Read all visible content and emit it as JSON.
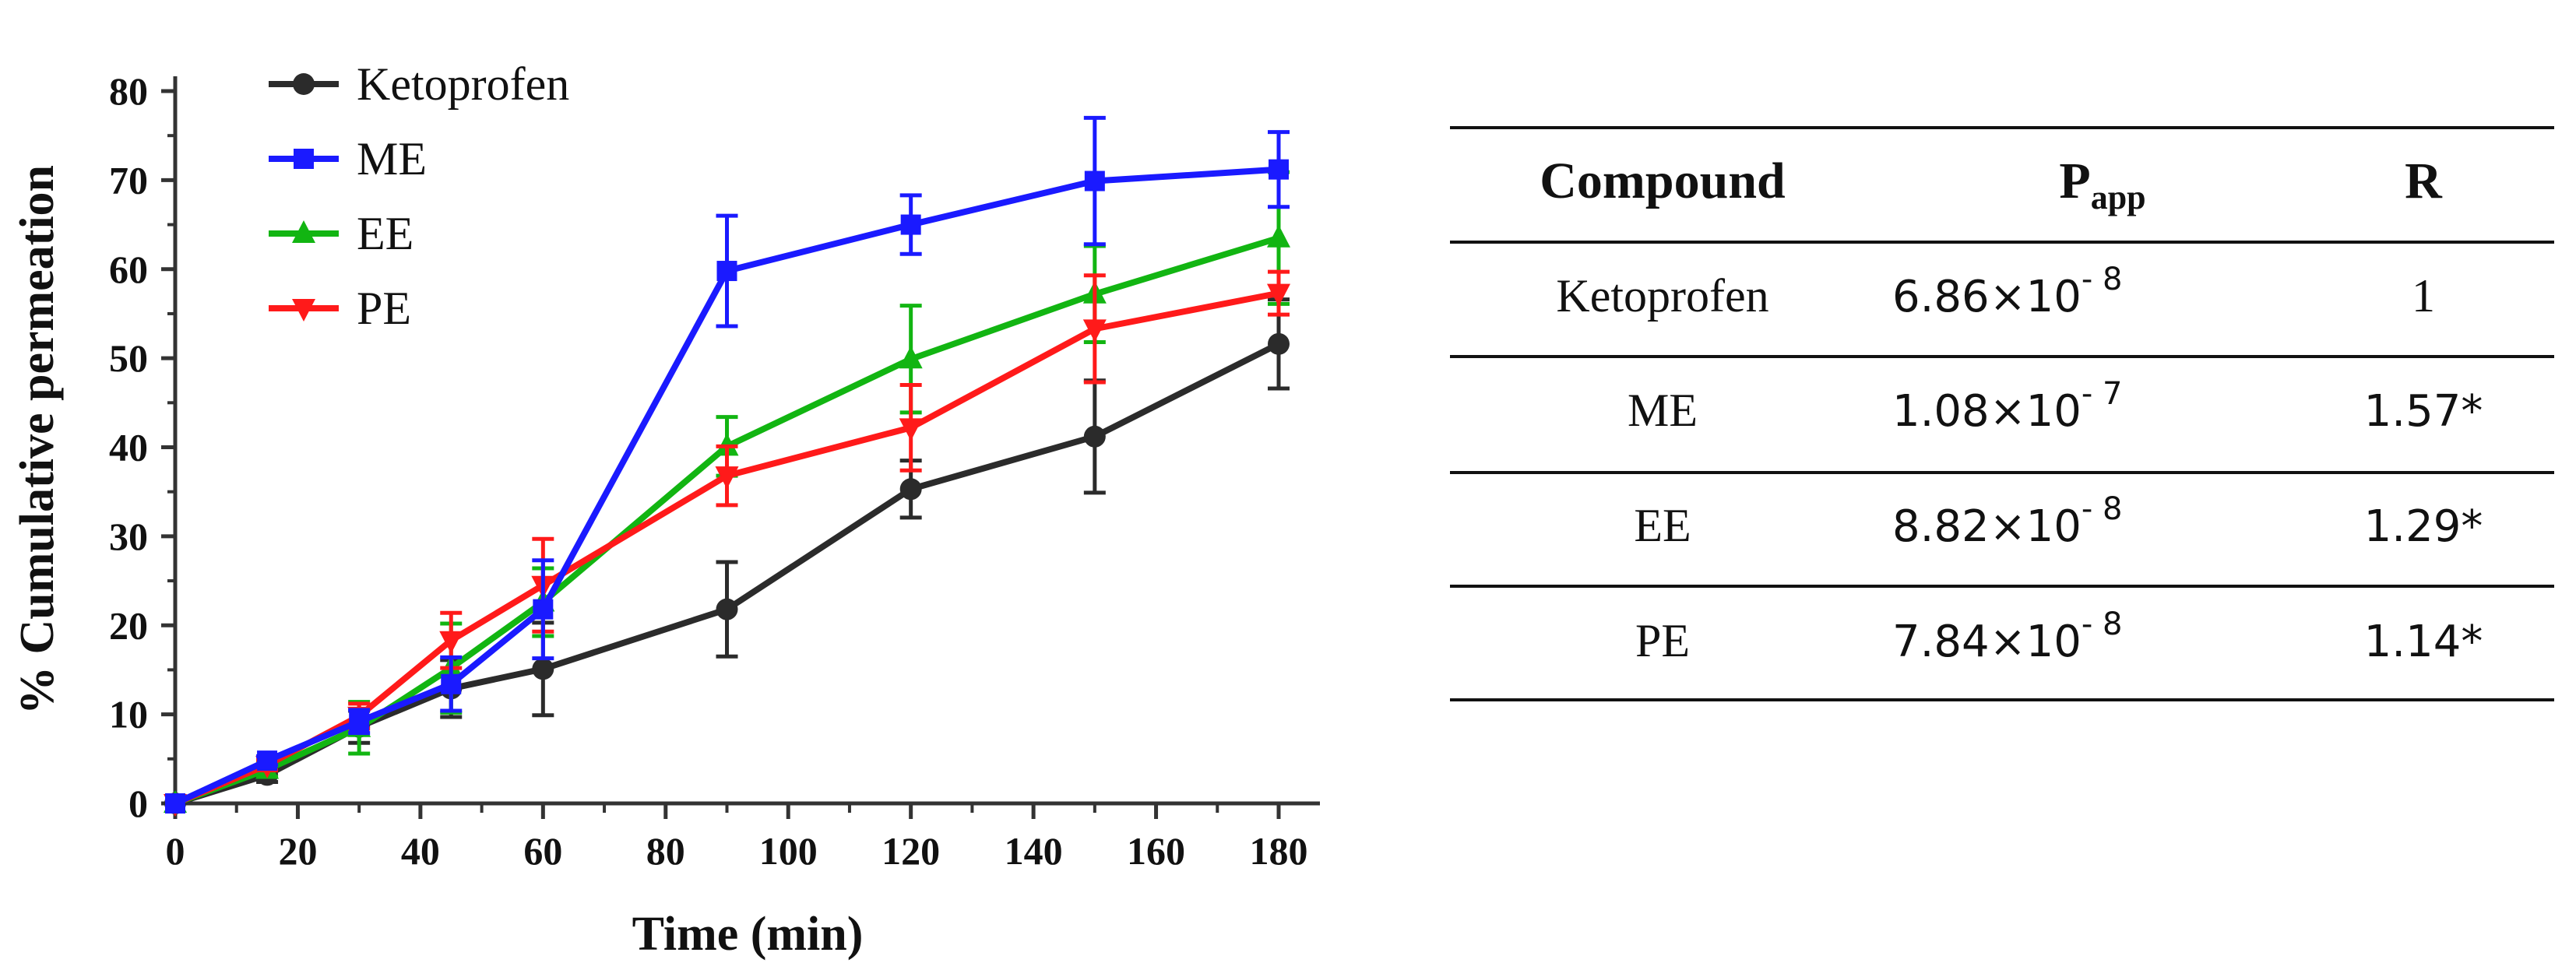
{
  "chart_data": {
    "type": "line",
    "xlabel": "Time (min)",
    "ylabel": "% Cumulative permeation",
    "xlim": [
      0,
      185
    ],
    "ylim": [
      0,
      85
    ],
    "x_ticks": [
      0,
      20,
      40,
      60,
      80,
      100,
      120,
      140,
      160,
      180
    ],
    "y_ticks": [
      0,
      10,
      20,
      30,
      40,
      50,
      60,
      70,
      80
    ],
    "legend_position": "top-left",
    "series": [
      {
        "name": "Ketoprofen",
        "color": "#2b2b2b",
        "marker": "circle",
        "x": [
          0,
          15,
          30,
          45,
          60,
          90,
          120,
          150,
          180
        ],
        "y": [
          0,
          3.2,
          8.6,
          12.9,
          15.1,
          21.8,
          35.3,
          41.2,
          51.6
        ],
        "error": [
          0,
          0.8,
          1.8,
          3.2,
          5.2,
          5.3,
          3.2,
          6.3,
          5.0
        ]
      },
      {
        "name": "ME",
        "color": "#1a1aff",
        "marker": "square",
        "x": [
          0,
          15,
          30,
          45,
          60,
          90,
          120,
          150,
          180
        ],
        "y": [
          0,
          4.8,
          9.2,
          13.4,
          21.8,
          59.8,
          65.0,
          69.9,
          71.2
        ],
        "error": [
          0,
          0.5,
          1.3,
          3.0,
          5.5,
          6.2,
          3.3,
          7.1,
          4.2
        ]
      },
      {
        "name": "EE",
        "color": "#12b512",
        "marker": "triangle-up",
        "x": [
          0,
          15,
          30,
          45,
          60,
          90,
          120,
          150,
          180
        ],
        "y": [
          0,
          3.8,
          8.5,
          15.2,
          22.6,
          40.1,
          49.9,
          57.2,
          63.5
        ],
        "error": [
          0,
          0.8,
          2.9,
          5.0,
          3.8,
          3.3,
          6.0,
          5.4,
          7.4
        ]
      },
      {
        "name": "PE",
        "color": "#ff1a1a",
        "marker": "triangle-down",
        "x": [
          0,
          15,
          30,
          45,
          60,
          90,
          120,
          150,
          180
        ],
        "y": [
          0,
          4.3,
          9.8,
          18.3,
          24.5,
          36.8,
          42.2,
          53.3,
          57.3
        ],
        "error": [
          0,
          0.6,
          1.4,
          3.1,
          5.2,
          3.3,
          4.8,
          6.0,
          2.4
        ]
      }
    ]
  },
  "table": {
    "headers": {
      "compound": "Compound",
      "papp_main": "P",
      "papp_sub": "app",
      "r": "R"
    },
    "rows": [
      {
        "compound": "Ketoprofen",
        "papp_mantissa": "6.86",
        "papp_exp": "- 8",
        "r": "1"
      },
      {
        "compound": "ME",
        "papp_mantissa": "1.08",
        "papp_exp": "- 7",
        "r": "1.57*"
      },
      {
        "compound": "EE",
        "papp_mantissa": "8.82",
        "papp_exp": "- 8",
        "r": "1.29*"
      },
      {
        "compound": "PE",
        "papp_mantissa": "7.84",
        "papp_exp": "- 8",
        "r": "1.14*"
      }
    ]
  }
}
